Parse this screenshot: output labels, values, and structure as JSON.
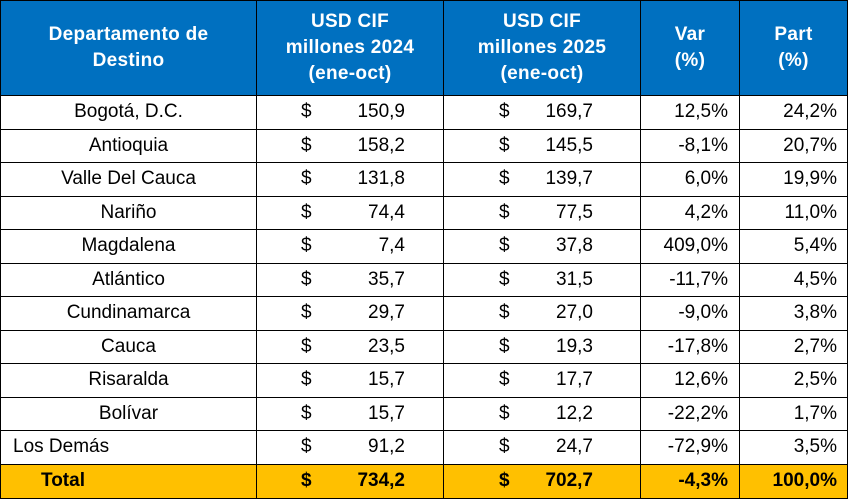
{
  "chart_data": {
    "type": "table",
    "columns": [
      [
        "Departamento de",
        "Destino"
      ],
      [
        "USD CIF",
        "millones 2024",
        "(ene-oct)"
      ],
      [
        "USD CIF",
        "millones 2025",
        "(ene-oct)"
      ],
      [
        "Var",
        "(%)"
      ],
      [
        "Part",
        "(%)"
      ]
    ],
    "currency_symbol": "$",
    "rows": [
      {
        "name": "Bogotá, D.C.",
        "usd_2024": "150,9",
        "usd_2025": "169,7",
        "var": "12,5%",
        "part": "24,2%"
      },
      {
        "name": "Antioquia",
        "usd_2024": "158,2",
        "usd_2025": "145,5",
        "var": "-8,1%",
        "part": "20,7%"
      },
      {
        "name": "Valle Del Cauca",
        "usd_2024": "131,8",
        "usd_2025": "139,7",
        "var": "6,0%",
        "part": "19,9%"
      },
      {
        "name": "Nariño",
        "usd_2024": "74,4",
        "usd_2025": "77,5",
        "var": "4,2%",
        "part": "11,0%"
      },
      {
        "name": "Magdalena",
        "usd_2024": "7,4",
        "usd_2025": "37,8",
        "var": "409,0%",
        "part": "5,4%"
      },
      {
        "name": "Atlántico",
        "usd_2024": "35,7",
        "usd_2025": "31,5",
        "var": "-11,7%",
        "part": "4,5%"
      },
      {
        "name": "Cundinamarca",
        "usd_2024": "29,7",
        "usd_2025": "27,0",
        "var": "-9,0%",
        "part": "3,8%"
      },
      {
        "name": "Cauca",
        "usd_2024": "23,5",
        "usd_2025": "19,3",
        "var": "-17,8%",
        "part": "2,7%"
      },
      {
        "name": "Risaralda",
        "usd_2024": "15,7",
        "usd_2025": "17,7",
        "var": "12,6%",
        "part": "2,5%"
      },
      {
        "name": "Bolívar",
        "usd_2024": "15,7",
        "usd_2025": "12,2",
        "var": "-22,2%",
        "part": "1,7%"
      },
      {
        "name": "Los Demás",
        "usd_2024": "91,2",
        "usd_2025": "24,7",
        "var": "-72,9%",
        "part": "3,5%"
      }
    ],
    "total": {
      "name": "Total",
      "usd_2024": "734,2",
      "usd_2025": "702,7",
      "var": "-4,3%",
      "part": "100,0%"
    }
  },
  "colors": {
    "header_bg": "#0070c0",
    "header_text": "#ffffff",
    "total_bg": "#ffc000",
    "border": "#000000"
  }
}
